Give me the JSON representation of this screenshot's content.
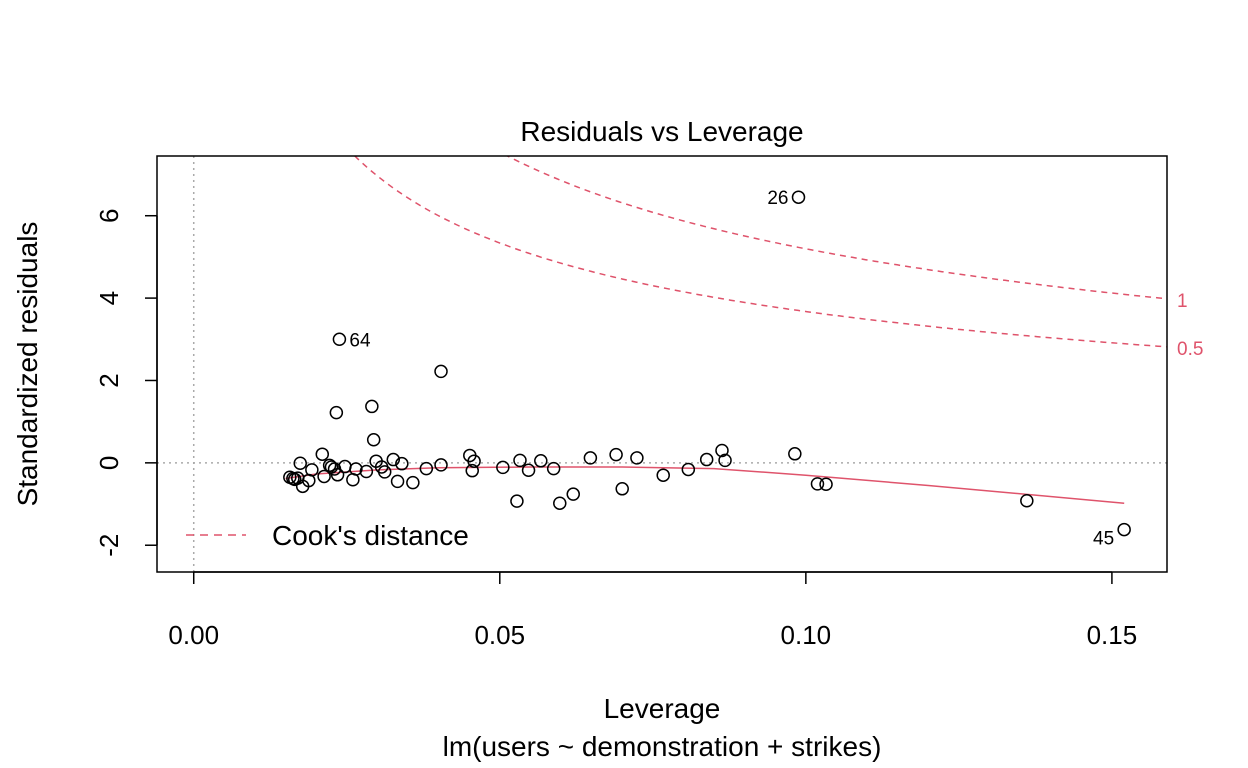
{
  "chart_data": {
    "type": "scatter",
    "title": "Residuals vs Leverage",
    "xlabel": "Leverage",
    "subtitle": "lm(users ~ demonstration + strikes)",
    "ylabel": "Standardized residuals",
    "xlim": [
      -0.006,
      0.159
    ],
    "ylim": [
      -2.65,
      7.45
    ],
    "x_ticks": [
      0.0,
      0.05,
      0.1,
      0.15
    ],
    "x_tick_labels": [
      "0.00",
      "0.05",
      "0.10",
      "0.15"
    ],
    "y_ticks": [
      -2,
      0,
      2,
      4,
      6
    ],
    "y_tick_labels": [
      "-2",
      "0",
      "2",
      "4",
      "6"
    ],
    "reference_lines": {
      "x": 0,
      "y": 0
    },
    "points": [
      {
        "x": 0.0988,
        "y": 6.45,
        "label": "26"
      },
      {
        "x": 0.0238,
        "y": 3.0,
        "label": "64"
      },
      {
        "x": 0.152,
        "y": -1.62,
        "label": "45"
      },
      {
        "x": 0.0404,
        "y": 2.22
      },
      {
        "x": 0.0291,
        "y": 1.37
      },
      {
        "x": 0.0233,
        "y": 1.22
      },
      {
        "x": 0.0294,
        "y": 0.56
      },
      {
        "x": 0.021,
        "y": 0.21
      },
      {
        "x": 0.0451,
        "y": 0.18
      },
      {
        "x": 0.0174,
        "y": -0.01
      },
      {
        "x": 0.0222,
        "y": -0.06
      },
      {
        "x": 0.0225,
        "y": -0.1
      },
      {
        "x": 0.023,
        "y": -0.15
      },
      {
        "x": 0.0247,
        "y": -0.09
      },
      {
        "x": 0.0193,
        "y": -0.17
      },
      {
        "x": 0.0162,
        "y": -0.38
      },
      {
        "x": 0.0157,
        "y": -0.35
      },
      {
        "x": 0.0165,
        "y": -0.4
      },
      {
        "x": 0.017,
        "y": -0.37
      },
      {
        "x": 0.0178,
        "y": -0.57
      },
      {
        "x": 0.0188,
        "y": -0.43
      },
      {
        "x": 0.0213,
        "y": -0.33
      },
      {
        "x": 0.0235,
        "y": -0.29
      },
      {
        "x": 0.026,
        "y": -0.41
      },
      {
        "x": 0.0265,
        "y": -0.15
      },
      {
        "x": 0.0282,
        "y": -0.21
      },
      {
        "x": 0.0298,
        "y": 0.04
      },
      {
        "x": 0.0307,
        "y": -0.1
      },
      {
        "x": 0.0312,
        "y": -0.22
      },
      {
        "x": 0.0326,
        "y": 0.08
      },
      {
        "x": 0.0333,
        "y": -0.45
      },
      {
        "x": 0.034,
        "y": -0.02
      },
      {
        "x": 0.0358,
        "y": -0.48
      },
      {
        "x": 0.038,
        "y": -0.14
      },
      {
        "x": 0.0404,
        "y": -0.05
      },
      {
        "x": 0.0455,
        "y": -0.19
      },
      {
        "x": 0.0458,
        "y": 0.04
      },
      {
        "x": 0.0505,
        "y": -0.11
      },
      {
        "x": 0.0528,
        "y": -0.93
      },
      {
        "x": 0.0533,
        "y": 0.06
      },
      {
        "x": 0.0547,
        "y": -0.18
      },
      {
        "x": 0.0567,
        "y": 0.05
      },
      {
        "x": 0.0588,
        "y": -0.14
      },
      {
        "x": 0.0598,
        "y": -0.98
      },
      {
        "x": 0.062,
        "y": -0.76
      },
      {
        "x": 0.0648,
        "y": 0.12
      },
      {
        "x": 0.069,
        "y": 0.2
      },
      {
        "x": 0.07,
        "y": -0.63
      },
      {
        "x": 0.0724,
        "y": 0.12
      },
      {
        "x": 0.0767,
        "y": -0.3
      },
      {
        "x": 0.0808,
        "y": -0.16
      },
      {
        "x": 0.0838,
        "y": 0.08
      },
      {
        "x": 0.0863,
        "y": 0.3
      },
      {
        "x": 0.0868,
        "y": 0.06
      },
      {
        "x": 0.0982,
        "y": 0.22
      },
      {
        "x": 0.1019,
        "y": -0.51
      },
      {
        "x": 0.1033,
        "y": -0.52
      },
      {
        "x": 0.1361,
        "y": -0.92
      }
    ],
    "smooth_line": {
      "color": "#DF536B",
      "x": [
        0.015,
        0.02,
        0.03,
        0.04,
        0.055,
        0.07,
        0.085,
        0.1,
        0.12,
        0.152
      ],
      "y": [
        -0.38,
        -0.27,
        -0.17,
        -0.12,
        -0.1,
        -0.1,
        -0.14,
        -0.3,
        -0.55,
        -0.98
      ]
    },
    "cook_contours": [
      {
        "level": 1,
        "label": "1",
        "color": "#DF536B"
      },
      {
        "level": 0.5,
        "label": "0.5",
        "color": "#DF536B"
      }
    ],
    "legend": {
      "position": "bottom-left",
      "entries": [
        {
          "label": "Cook's distance",
          "style": "dashed",
          "color": "#DF536B"
        }
      ]
    },
    "n_params": 3
  }
}
